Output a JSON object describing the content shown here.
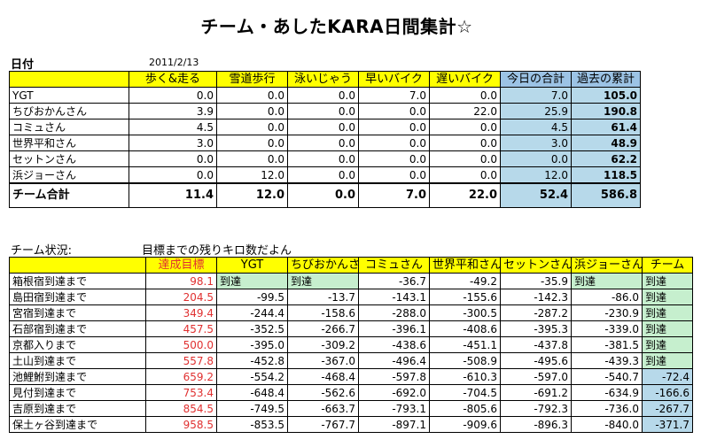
{
  "title": "チーム・あしたKARA日間集計☆",
  "date_label": "日付",
  "date_value": "2011/2/13",
  "table1": {
    "headers": [
      "歩く&走る",
      "雪道歩行",
      "泳いじゃう",
      "早いバイク",
      "遅いバイク",
      "今日の合計",
      "過去の累計"
    ],
    "rows": [
      {
        "name": "YGT",
        "vals": [
          "0.0",
          "0.0",
          "0.0",
          "7.0",
          "0.0",
          "7.0",
          "105.0"
        ]
      },
      {
        "name": "ちびおかんさん",
        "vals": [
          "3.9",
          "0.0",
          "0.0",
          "0.0",
          "22.0",
          "25.9",
          "190.8"
        ]
      },
      {
        "name": "コミュさん",
        "vals": [
          "4.5",
          "0.0",
          "0.0",
          "0.0",
          "0.0",
          "4.5",
          "61.4"
        ]
      },
      {
        "name": "世界平和さん",
        "vals": [
          "3.0",
          "0.0",
          "0.0",
          "0.0",
          "0.0",
          "3.0",
          "48.9"
        ]
      },
      {
        "name": "セットンさん",
        "vals": [
          "0.0",
          "0.0",
          "0.0",
          "0.0",
          "0.0",
          "0.0",
          "62.2"
        ]
      },
      {
        "name": "浜ジョーさん",
        "vals": [
          "0.0",
          "12.0",
          "0.0",
          "0.0",
          "0.0",
          "12.0",
          "118.5"
        ]
      }
    ],
    "total": {
      "name": "チーム合計",
      "vals": [
        "11.4",
        "12.0",
        "0.0",
        "7.0",
        "22.0",
        "52.4",
        "586.8"
      ]
    }
  },
  "status_label": "チーム状況:",
  "status_sub": "目標までの残りキロ数だよん",
  "table2": {
    "headers": [
      "達成目標",
      "YGT",
      "ちびおかんさん",
      "コミュさん",
      "世界平和さん",
      "セットンさん",
      "浜ジョーさん",
      "チーム"
    ],
    "rows": [
      {
        "name": "箱根宿到達まで",
        "target": "98.1",
        "vals": [
          "到達",
          "到達",
          "-36.7",
          "-49.2",
          "-35.9",
          "到達",
          "到達"
        ]
      },
      {
        "name": "島田宿到達まで",
        "target": "204.5",
        "vals": [
          "-99.5",
          "-13.7",
          "-143.1",
          "-155.6",
          "-142.3",
          "-86.0",
          "到達"
        ]
      },
      {
        "name": "宮宿到達まで",
        "target": "349.4",
        "vals": [
          "-244.4",
          "-158.6",
          "-288.0",
          "-300.5",
          "-287.2",
          "-230.9",
          "到達"
        ]
      },
      {
        "name": "石部宿到達まで",
        "target": "457.5",
        "vals": [
          "-352.5",
          "-266.7",
          "-396.1",
          "-408.6",
          "-395.3",
          "-339.0",
          "到達"
        ]
      },
      {
        "name": "京都入りまで",
        "target": "500.0",
        "vals": [
          "-395.0",
          "-309.2",
          "-438.6",
          "-451.1",
          "-437.8",
          "-381.5",
          "到達"
        ]
      },
      {
        "name": "土山到達まで",
        "target": "557.8",
        "vals": [
          "-452.8",
          "-367.0",
          "-496.4",
          "-508.9",
          "-495.6",
          "-439.3",
          "到達"
        ]
      },
      {
        "name": "池鯉鮒到達まで",
        "target": "659.2",
        "vals": [
          "-554.2",
          "-468.4",
          "-597.8",
          "-610.3",
          "-597.0",
          "-540.7",
          "-72.4"
        ]
      },
      {
        "name": "見付到達まで",
        "target": "753.4",
        "vals": [
          "-648.4",
          "-562.6",
          "-692.0",
          "-704.5",
          "-691.2",
          "-634.9",
          "-166.6"
        ]
      },
      {
        "name": "吉原到達まで",
        "target": "854.5",
        "vals": [
          "-749.5",
          "-663.7",
          "-793.1",
          "-805.6",
          "-792.3",
          "-736.0",
          "-267.7"
        ]
      },
      {
        "name": "保土ヶ谷到達まで",
        "target": "958.5",
        "vals": [
          "-853.5",
          "-767.7",
          "-897.1",
          "-909.6",
          "-896.3",
          "-840.0",
          "-371.7"
        ]
      }
    ]
  }
}
